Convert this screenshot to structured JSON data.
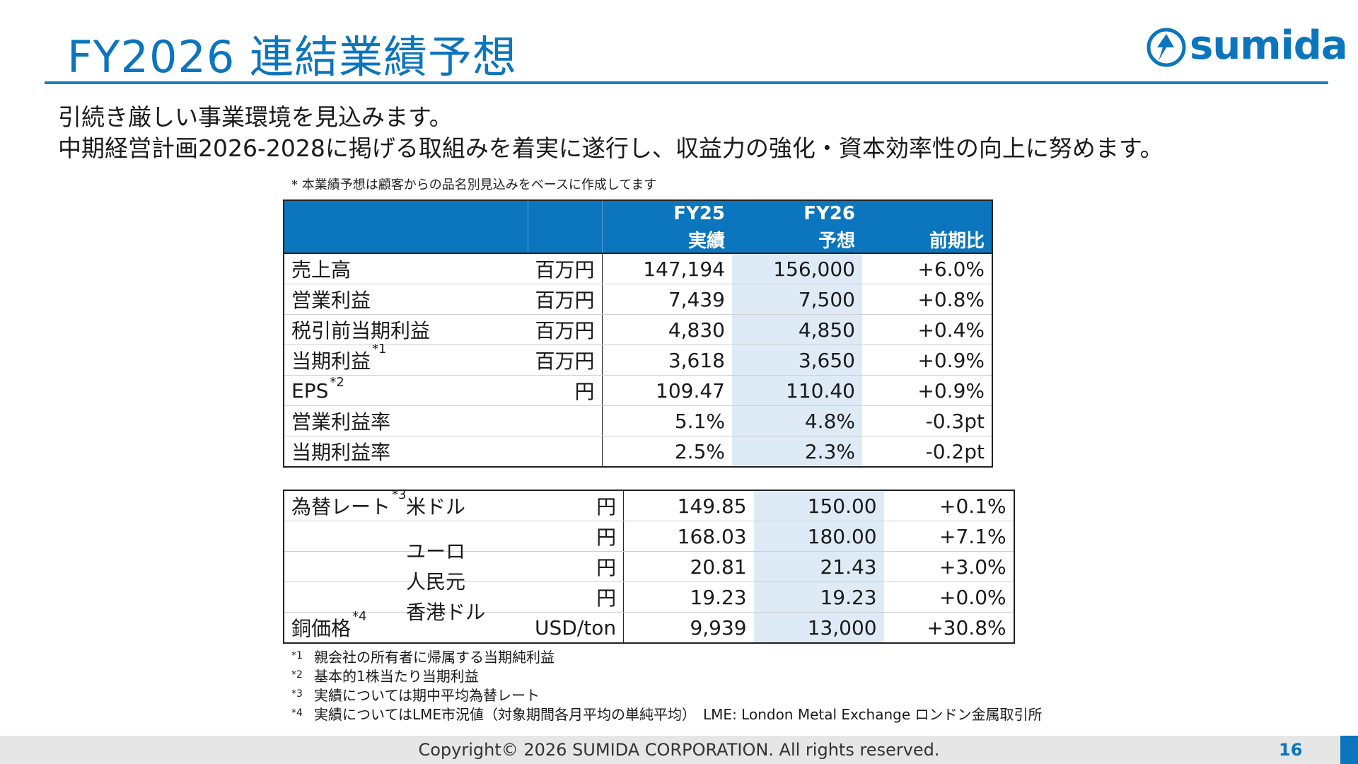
{
  "title": "FY2026 連結業績予想",
  "logo_text": "sumida",
  "lead": [
    "引続き厳しい事業環境を見込みます。",
    "中期経営計画2026-2028に掲げる取組みを着実に遂行し、収益力の強化・資本効率性の向上に努めます。"
  ],
  "top_note": "* 本業績予想は顧客からの品名別見込みをベースに作成してます",
  "table1": {
    "header": {
      "fy25_line1": "FY25",
      "fy25_line2": "実績",
      "fy26_line1": "FY26",
      "fy26_line2": "予想",
      "ratio": "前期比"
    },
    "rows": [
      {
        "label": "売上高",
        "sup": "",
        "unit": "百万円",
        "fy25": "147,194",
        "fy26": "156,000",
        "ratio": "+6.0%"
      },
      {
        "label": "営業利益",
        "sup": "",
        "unit": "百万円",
        "fy25": "7,439",
        "fy26": "7,500",
        "ratio": "+0.8%"
      },
      {
        "label": "税引前当期利益",
        "sup": "",
        "unit": "百万円",
        "fy25": "4,830",
        "fy26": "4,850",
        "ratio": "+0.4%"
      },
      {
        "label": "当期利益",
        "sup": "*1",
        "unit": "百万円",
        "fy25": "3,618",
        "fy26": "3,650",
        "ratio": "+0.9%"
      },
      {
        "label": "EPS",
        "sup": "*2",
        "unit": "円",
        "fy25": "109.47",
        "fy26": "110.40",
        "ratio": "+0.9%"
      },
      {
        "label": "営業利益率",
        "sup": "",
        "unit": "",
        "fy25": "5.1%",
        "fy26": "4.8%",
        "ratio": "-0.3pt"
      },
      {
        "label": "当期利益率",
        "sup": "",
        "unit": "",
        "fy25": "2.5%",
        "fy26": "2.3%",
        "ratio": "-0.2pt"
      }
    ]
  },
  "table2": {
    "fx_label": "為替レート",
    "fx_sup": "*3",
    "rows": [
      {
        "item": "米ドル",
        "unit": "円",
        "fy25": "149.85",
        "fy26": "150.00",
        "ratio": "+0.1%"
      },
      {
        "item": "ユーロ",
        "unit": "円",
        "fy25": "168.03",
        "fy26": "180.00",
        "ratio": "+7.1%"
      },
      {
        "item": "人民元",
        "unit": "円",
        "fy25": "20.81",
        "fy26": "21.43",
        "ratio": "+3.0%"
      },
      {
        "item": "香港ドル",
        "unit": "円",
        "fy25": "19.23",
        "fy26": "19.23",
        "ratio": "+0.0%"
      }
    ],
    "copper": {
      "label": "銅価格",
      "sup": "*4",
      "unit": "USD/ton",
      "fy25": "9,939",
      "fy26": "13,000",
      "ratio": "+30.8%"
    }
  },
  "footnotes": [
    {
      "mark": "*1",
      "text": "親会社の所有者に帰属する当期純利益"
    },
    {
      "mark": "*2",
      "text": "基本的1株当たり当期利益"
    },
    {
      "mark": "*3",
      "text": "実績については期中平均為替レート"
    },
    {
      "mark": "*4",
      "text": "実績についてはLME市況値（対象期間各月平均の単純平均）　LME: London Metal Exchange ロンドン金属取引所"
    }
  ],
  "footer": {
    "copyright": "Copyright© 2026 SUMIDA CORPORATION. All rights reserved.",
    "page": "16"
  },
  "colors": {
    "brand": "#0b75bd",
    "highlight": "#deebf7",
    "footer": "#e6e6e6"
  }
}
